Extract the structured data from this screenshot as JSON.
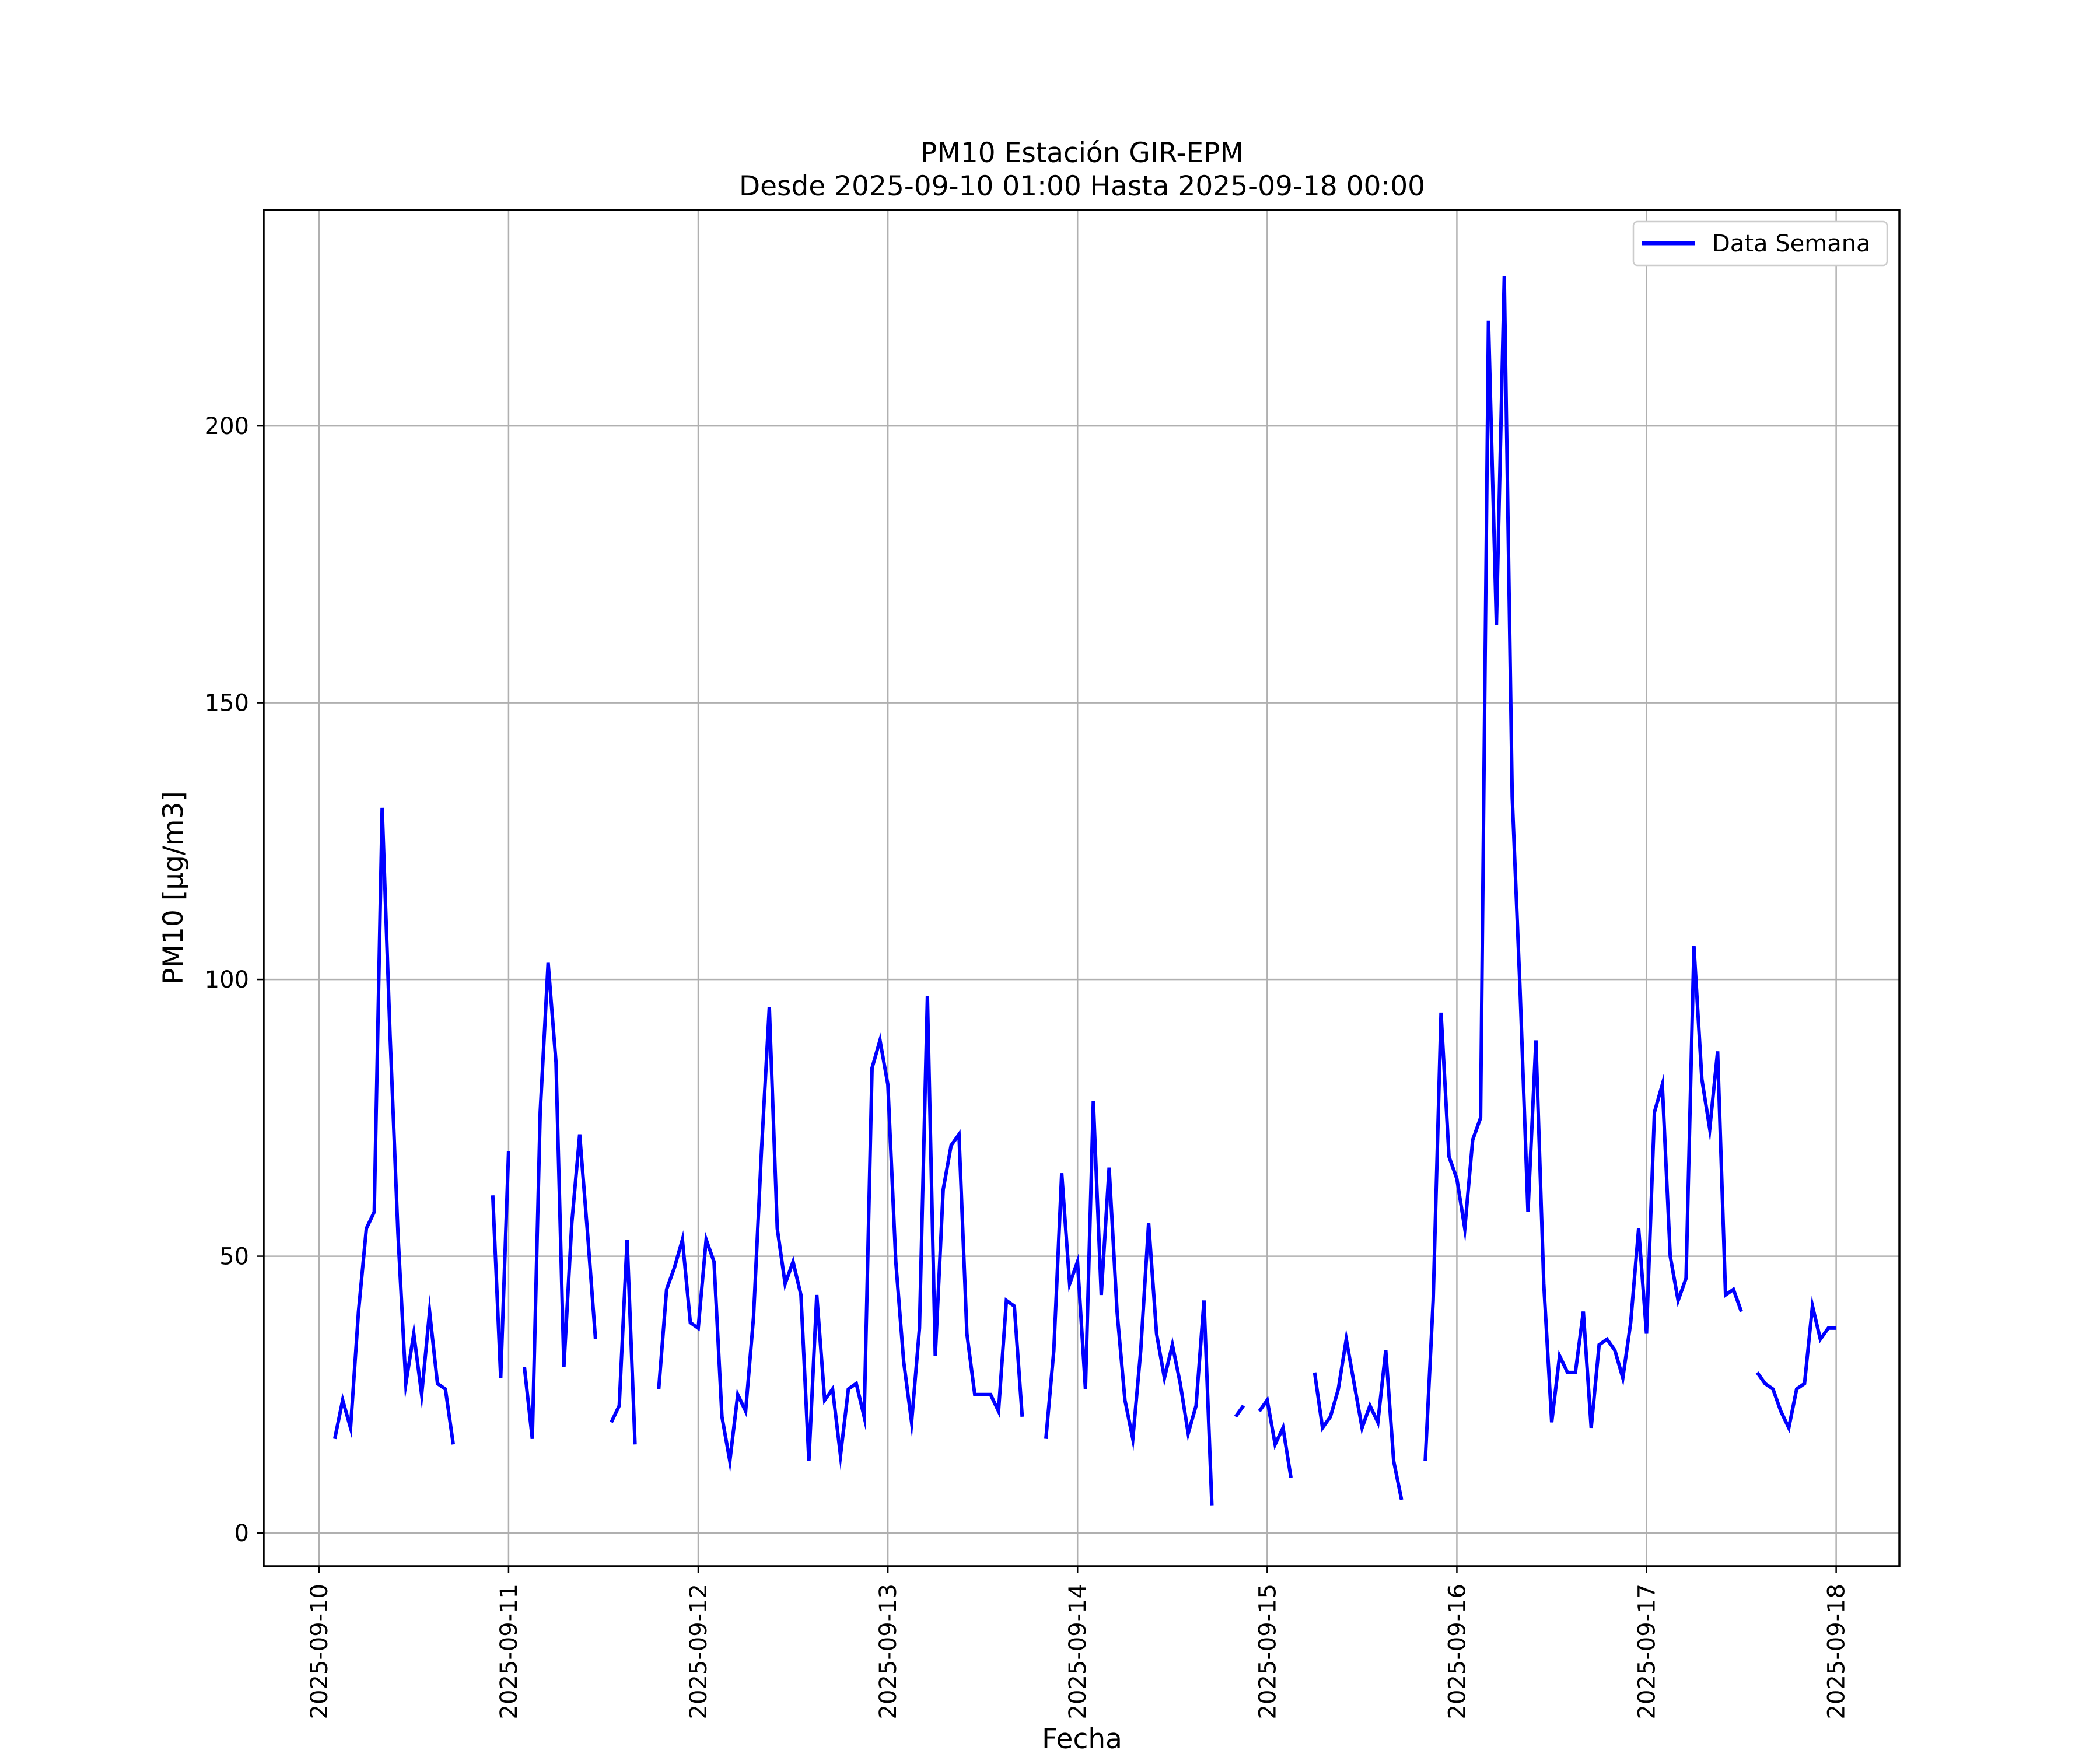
{
  "chart_data": {
    "type": "line",
    "title": "PM10 Estación GIR-EPM",
    "subtitle": "Desde 2025-09-10 01:00 Hasta 2025-09-18 00:00",
    "xlabel": "Fecha",
    "ylabel": "PM10 [µg/m3]",
    "xlim": [
      "2025-09-09 17:00",
      "2025-09-18 08:00"
    ],
    "ylim": [
      -6,
      239
    ],
    "xticks": [
      "2025-09-10",
      "2025-09-11",
      "2025-09-12",
      "2025-09-13",
      "2025-09-14",
      "2025-09-15",
      "2025-09-16",
      "2025-09-17",
      "2025-09-18"
    ],
    "yticks": [
      0,
      50,
      100,
      150,
      200
    ],
    "grid": true,
    "legend": "top-right",
    "series": [
      {
        "name": "Data Semana",
        "color": "#0000ff",
        "points": [
          [
            "2025-09-10 02:00",
            17
          ],
          [
            "2025-09-10 03:00",
            24
          ],
          [
            "2025-09-10 04:00",
            19
          ],
          [
            "2025-09-10 05:00",
            40
          ],
          [
            "2025-09-10 06:00",
            55
          ],
          [
            "2025-09-10 07:00",
            58
          ],
          [
            "2025-09-10 08:00",
            131
          ],
          [
            "2025-09-10 09:00",
            90
          ],
          [
            "2025-09-10 10:00",
            54
          ],
          [
            "2025-09-10 11:00",
            27
          ],
          [
            "2025-09-10 12:00",
            36
          ],
          [
            "2025-09-10 13:00",
            25
          ],
          [
            "2025-09-10 14:00",
            40
          ],
          [
            "2025-09-10 15:00",
            27
          ],
          [
            "2025-09-10 16:00",
            26
          ],
          [
            "2025-09-10 17:00",
            16
          ],
          [
            "2025-09-10 18:00",
            null
          ],
          [
            "2025-09-10 22:00",
            61
          ],
          [
            "2025-09-10 23:00",
            28
          ],
          [
            "2025-09-11 00:00",
            69
          ],
          [
            "2025-09-11 01:00",
            null
          ],
          [
            "2025-09-11 02:00",
            30
          ],
          [
            "2025-09-11 03:00",
            17
          ],
          [
            "2025-09-11 04:00",
            76
          ],
          [
            "2025-09-11 05:00",
            103
          ],
          [
            "2025-09-11 06:00",
            85
          ],
          [
            "2025-09-11 07:00",
            30
          ],
          [
            "2025-09-11 08:00",
            56
          ],
          [
            "2025-09-11 09:00",
            72
          ],
          [
            "2025-09-11 10:00",
            54
          ],
          [
            "2025-09-11 11:00",
            35
          ],
          [
            "2025-09-11 12:00",
            null
          ],
          [
            "2025-09-11 13:00",
            20
          ],
          [
            "2025-09-11 14:00",
            23
          ],
          [
            "2025-09-11 15:00",
            53
          ],
          [
            "2025-09-11 16:00",
            16
          ],
          [
            "2025-09-11 17:00",
            null
          ],
          [
            "2025-09-11 19:00",
            26
          ],
          [
            "2025-09-11 20:00",
            44
          ],
          [
            "2025-09-11 21:00",
            48
          ],
          [
            "2025-09-11 22:00",
            53
          ],
          [
            "2025-09-11 23:00",
            38
          ],
          [
            "2025-09-12 00:00",
            37
          ],
          [
            "2025-09-12 01:00",
            53
          ],
          [
            "2025-09-12 02:00",
            49
          ],
          [
            "2025-09-12 03:00",
            21
          ],
          [
            "2025-09-12 04:00",
            13
          ],
          [
            "2025-09-12 05:00",
            25
          ],
          [
            "2025-09-12 06:00",
            22
          ],
          [
            "2025-09-12 07:00",
            39
          ],
          [
            "2025-09-12 08:00",
            69
          ],
          [
            "2025-09-12 09:00",
            95
          ],
          [
            "2025-09-12 10:00",
            55
          ],
          [
            "2025-09-12 11:00",
            45
          ],
          [
            "2025-09-12 12:00",
            49
          ],
          [
            "2025-09-12 13:00",
            43
          ],
          [
            "2025-09-12 14:00",
            13
          ],
          [
            "2025-09-12 15:00",
            43
          ],
          [
            "2025-09-12 16:00",
            24
          ],
          [
            "2025-09-12 17:00",
            26
          ],
          [
            "2025-09-12 18:00",
            14
          ],
          [
            "2025-09-12 19:00",
            26
          ],
          [
            "2025-09-12 20:00",
            27
          ],
          [
            "2025-09-12 21:00",
            21
          ],
          [
            "2025-09-12 22:00",
            84
          ],
          [
            "2025-09-12 23:00",
            89
          ],
          [
            "2025-09-13 00:00",
            81
          ],
          [
            "2025-09-13 01:00",
            49
          ],
          [
            "2025-09-13 02:00",
            31
          ],
          [
            "2025-09-13 03:00",
            20
          ],
          [
            "2025-09-13 04:00",
            37
          ],
          [
            "2025-09-13 05:00",
            97
          ],
          [
            "2025-09-13 06:00",
            32
          ],
          [
            "2025-09-13 07:00",
            62
          ],
          [
            "2025-09-13 08:00",
            70
          ],
          [
            "2025-09-13 09:00",
            72
          ],
          [
            "2025-09-13 10:00",
            36
          ],
          [
            "2025-09-13 11:00",
            25
          ],
          [
            "2025-09-13 12:00",
            25
          ],
          [
            "2025-09-13 13:00",
            25
          ],
          [
            "2025-09-13 14:00",
            22
          ],
          [
            "2025-09-13 15:00",
            42
          ],
          [
            "2025-09-13 16:00",
            41
          ],
          [
            "2025-09-13 17:00",
            21
          ],
          [
            "2025-09-13 18:00",
            null
          ],
          [
            "2025-09-13 20:00",
            17
          ],
          [
            "2025-09-13 21:00",
            33
          ],
          [
            "2025-09-13 22:00",
            65
          ],
          [
            "2025-09-13 23:00",
            45
          ],
          [
            "2025-09-14 00:00",
            49
          ],
          [
            "2025-09-14 01:00",
            26
          ],
          [
            "2025-09-14 02:00",
            78
          ],
          [
            "2025-09-14 03:00",
            43
          ],
          [
            "2025-09-14 04:00",
            66
          ],
          [
            "2025-09-14 05:00",
            40
          ],
          [
            "2025-09-14 06:00",
            24
          ],
          [
            "2025-09-14 07:00",
            17
          ],
          [
            "2025-09-14 08:00",
            33
          ],
          [
            "2025-09-14 09:00",
            56
          ],
          [
            "2025-09-14 10:00",
            36
          ],
          [
            "2025-09-14 11:00",
            28
          ],
          [
            "2025-09-14 12:00",
            34
          ],
          [
            "2025-09-14 13:00",
            27
          ],
          [
            "2025-09-14 14:00",
            18
          ],
          [
            "2025-09-14 15:00",
            23
          ],
          [
            "2025-09-14 16:00",
            42
          ],
          [
            "2025-09-14 17:00",
            5
          ],
          [
            "2025-09-14 18:00",
            null
          ],
          [
            "2025-09-14 20:00",
            21
          ],
          [
            "2025-09-14 21:00",
            23
          ],
          [
            "2025-09-14 22:00",
            null
          ],
          [
            "2025-09-14 23:00",
            22
          ],
          [
            "2025-09-15 00:00",
            24
          ],
          [
            "2025-09-15 01:00",
            16
          ],
          [
            "2025-09-15 02:00",
            19
          ],
          [
            "2025-09-15 03:00",
            10
          ],
          [
            "2025-09-15 04:00",
            null
          ],
          [
            "2025-09-15 06:00",
            29
          ],
          [
            "2025-09-15 07:00",
            19
          ],
          [
            "2025-09-15 08:00",
            21
          ],
          [
            "2025-09-15 09:00",
            26
          ],
          [
            "2025-09-15 10:00",
            35
          ],
          [
            "2025-09-15 11:00",
            27
          ],
          [
            "2025-09-15 12:00",
            19
          ],
          [
            "2025-09-15 13:00",
            23
          ],
          [
            "2025-09-15 14:00",
            20
          ],
          [
            "2025-09-15 15:00",
            33
          ],
          [
            "2025-09-15 16:00",
            13
          ],
          [
            "2025-09-15 17:00",
            6
          ],
          [
            "2025-09-15 18:00",
            null
          ],
          [
            "2025-09-15 20:00",
            13
          ],
          [
            "2025-09-15 21:00",
            42
          ],
          [
            "2025-09-15 22:00",
            94
          ],
          [
            "2025-09-15 23:00",
            68
          ],
          [
            "2025-09-16 00:00",
            64
          ],
          [
            "2025-09-16 01:00",
            55
          ],
          [
            "2025-09-16 02:00",
            71
          ],
          [
            "2025-09-16 03:00",
            75
          ],
          [
            "2025-09-16 04:00",
            219
          ],
          [
            "2025-09-16 05:00",
            164
          ],
          [
            "2025-09-16 06:00",
            227
          ],
          [
            "2025-09-16 07:00",
            133
          ],
          [
            "2025-09-16 08:00",
            98
          ],
          [
            "2025-09-16 09:00",
            58
          ],
          [
            "2025-09-16 10:00",
            89
          ],
          [
            "2025-09-16 11:00",
            45
          ],
          [
            "2025-09-16 12:00",
            20
          ],
          [
            "2025-09-16 13:00",
            32
          ],
          [
            "2025-09-16 14:00",
            29
          ],
          [
            "2025-09-16 15:00",
            29
          ],
          [
            "2025-09-16 16:00",
            40
          ],
          [
            "2025-09-16 17:00",
            19
          ],
          [
            "2025-09-16 18:00",
            34
          ],
          [
            "2025-09-16 19:00",
            35
          ],
          [
            "2025-09-16 20:00",
            33
          ],
          [
            "2025-09-16 21:00",
            28
          ],
          [
            "2025-09-16 22:00",
            38
          ],
          [
            "2025-09-16 23:00",
            55
          ],
          [
            "2025-09-17 00:00",
            36
          ],
          [
            "2025-09-17 01:00",
            76
          ],
          [
            "2025-09-17 02:00",
            81
          ],
          [
            "2025-09-17 03:00",
            50
          ],
          [
            "2025-09-17 04:00",
            42
          ],
          [
            "2025-09-17 05:00",
            46
          ],
          [
            "2025-09-17 06:00",
            106
          ],
          [
            "2025-09-17 07:00",
            82
          ],
          [
            "2025-09-17 08:00",
            73
          ],
          [
            "2025-09-17 09:00",
            87
          ],
          [
            "2025-09-17 10:00",
            43
          ],
          [
            "2025-09-17 11:00",
            44
          ],
          [
            "2025-09-17 12:00",
            40
          ],
          [
            "2025-09-17 13:00",
            null
          ],
          [
            "2025-09-17 14:00",
            29
          ],
          [
            "2025-09-17 15:00",
            27
          ],
          [
            "2025-09-17 16:00",
            26
          ],
          [
            "2025-09-17 17:00",
            22
          ],
          [
            "2025-09-17 18:00",
            19
          ],
          [
            "2025-09-17 19:00",
            26
          ],
          [
            "2025-09-17 20:00",
            27
          ],
          [
            "2025-09-17 21:00",
            41
          ],
          [
            "2025-09-17 22:00",
            35
          ],
          [
            "2025-09-17 23:00",
            37
          ],
          [
            "2025-09-18 00:00",
            37
          ]
        ]
      }
    ]
  }
}
